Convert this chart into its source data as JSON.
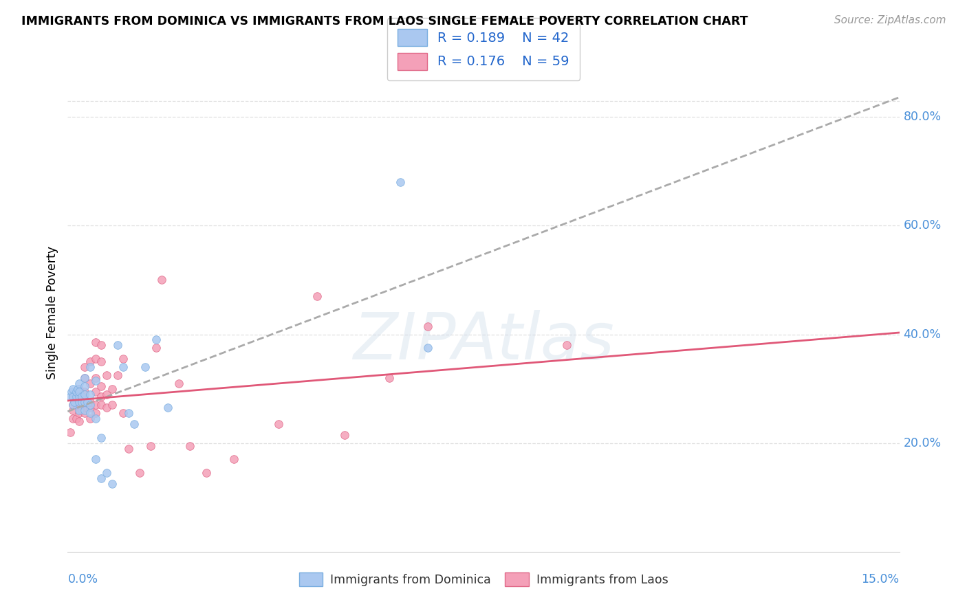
{
  "title": "IMMIGRANTS FROM DOMINICA VS IMMIGRANTS FROM LAOS SINGLE FEMALE POVERTY CORRELATION CHART",
  "source": "Source: ZipAtlas.com",
  "ylabel": "Single Female Poverty",
  "ylabel_right_ticks": [
    "20.0%",
    "40.0%",
    "60.0%",
    "80.0%"
  ],
  "ylabel_right_vals": [
    0.2,
    0.4,
    0.6,
    0.8
  ],
  "xlim": [
    0.0,
    0.15
  ],
  "ylim": [
    0.0,
    0.88
  ],
  "dominica_color": "#aac8f0",
  "dominica_edge": "#7aaee0",
  "laos_color": "#f4a0b8",
  "laos_edge": "#e06888",
  "trend_dominica_color": "#aaaaaa",
  "trend_laos_color": "#e05878",
  "trend_dominica_style": "--",
  "trend_laos_style": "-",
  "legend_R_dominica": "R = 0.189",
  "legend_N_dominica": "N = 42",
  "legend_R_laos": "R = 0.176",
  "legend_N_laos": "N = 59",
  "dominica_x": [
    0.0005,
    0.0007,
    0.001,
    0.001,
    0.001,
    0.0012,
    0.0015,
    0.0015,
    0.0018,
    0.002,
    0.002,
    0.002,
    0.002,
    0.002,
    0.0025,
    0.0025,
    0.003,
    0.003,
    0.003,
    0.003,
    0.003,
    0.0035,
    0.004,
    0.004,
    0.004,
    0.004,
    0.005,
    0.005,
    0.005,
    0.006,
    0.006,
    0.007,
    0.008,
    0.009,
    0.01,
    0.011,
    0.012,
    0.014,
    0.016,
    0.018,
    0.06,
    0.065
  ],
  "dominica_y": [
    0.285,
    0.295,
    0.27,
    0.285,
    0.3,
    0.275,
    0.285,
    0.295,
    0.3,
    0.26,
    0.275,
    0.285,
    0.295,
    0.31,
    0.275,
    0.285,
    0.26,
    0.275,
    0.29,
    0.305,
    0.32,
    0.275,
    0.255,
    0.27,
    0.29,
    0.34,
    0.17,
    0.245,
    0.315,
    0.135,
    0.21,
    0.145,
    0.125,
    0.38,
    0.34,
    0.255,
    0.235,
    0.34,
    0.39,
    0.265,
    0.68,
    0.375
  ],
  "laos_x": [
    0.0005,
    0.001,
    0.001,
    0.001,
    0.001,
    0.0015,
    0.0015,
    0.002,
    0.002,
    0.002,
    0.002,
    0.002,
    0.0025,
    0.003,
    0.003,
    0.003,
    0.003,
    0.003,
    0.003,
    0.0035,
    0.004,
    0.004,
    0.004,
    0.004,
    0.004,
    0.005,
    0.005,
    0.005,
    0.005,
    0.005,
    0.005,
    0.006,
    0.006,
    0.006,
    0.006,
    0.006,
    0.007,
    0.007,
    0.007,
    0.008,
    0.008,
    0.009,
    0.01,
    0.01,
    0.011,
    0.013,
    0.015,
    0.016,
    0.017,
    0.02,
    0.022,
    0.025,
    0.03,
    0.038,
    0.045,
    0.05,
    0.058,
    0.065,
    0.09
  ],
  "laos_y": [
    0.22,
    0.245,
    0.26,
    0.27,
    0.285,
    0.245,
    0.27,
    0.24,
    0.255,
    0.27,
    0.285,
    0.3,
    0.26,
    0.255,
    0.265,
    0.28,
    0.295,
    0.32,
    0.34,
    0.265,
    0.245,
    0.265,
    0.275,
    0.31,
    0.35,
    0.255,
    0.27,
    0.295,
    0.32,
    0.355,
    0.385,
    0.27,
    0.285,
    0.305,
    0.35,
    0.38,
    0.265,
    0.29,
    0.325,
    0.27,
    0.3,
    0.325,
    0.255,
    0.355,
    0.19,
    0.145,
    0.195,
    0.375,
    0.5,
    0.31,
    0.195,
    0.145,
    0.17,
    0.235,
    0.47,
    0.215,
    0.32,
    0.415,
    0.38
  ],
  "background_color": "#ffffff",
  "grid_color": "#e0e0e0",
  "marker_size": 70,
  "marker_alpha": 0.85,
  "watermark_text": "ZIPAtlas",
  "watermark_color": "#c8d8e8",
  "watermark_alpha": 0.35
}
